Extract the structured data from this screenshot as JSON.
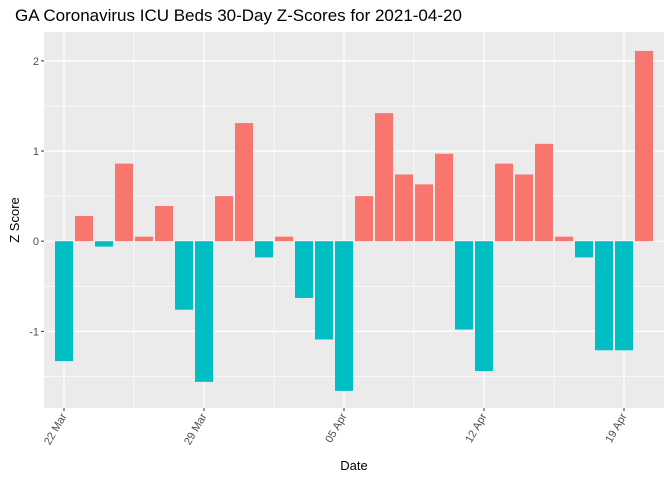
{
  "chart_data": {
    "type": "bar",
    "title": "GA Coronavirus ICU Beds 30-Day Z-Scores for 2021-04-20",
    "xlabel": "Date",
    "ylabel": "Z Score",
    "x_start": "2021-03-21",
    "x_end": "2021-04-21",
    "ylim": [
      -1.85,
      2.32
    ],
    "y_ticks": [
      -1,
      0,
      1,
      2
    ],
    "x_ticks": [
      {
        "date": "2021-03-22",
        "label": "22 Mar"
      },
      {
        "date": "2021-03-29",
        "label": "29 Mar"
      },
      {
        "date": "2021-04-05",
        "label": "05 Apr"
      },
      {
        "date": "2021-04-12",
        "label": "12 Apr"
      },
      {
        "date": "2021-04-19",
        "label": "19 Apr"
      }
    ],
    "positive_color": "#F8766D",
    "negative_color": "#00BFC4",
    "grid": true,
    "bars": [
      {
        "date": "2021-03-22",
        "value": -1.33
      },
      {
        "date": "2021-03-23",
        "value": 0.28
      },
      {
        "date": "2021-03-24",
        "value": -0.06
      },
      {
        "date": "2021-03-25",
        "value": 0.86
      },
      {
        "date": "2021-03-26",
        "value": 0.05
      },
      {
        "date": "2021-03-27",
        "value": 0.39
      },
      {
        "date": "2021-03-28",
        "value": -0.76
      },
      {
        "date": "2021-03-29",
        "value": -1.56
      },
      {
        "date": "2021-03-30",
        "value": 0.5
      },
      {
        "date": "2021-03-31",
        "value": 1.31
      },
      {
        "date": "2021-04-01",
        "value": -0.18
      },
      {
        "date": "2021-04-02",
        "value": 0.05
      },
      {
        "date": "2021-04-03",
        "value": -0.63
      },
      {
        "date": "2021-04-04",
        "value": -1.09
      },
      {
        "date": "2021-04-05",
        "value": -1.66
      },
      {
        "date": "2021-04-06",
        "value": 0.5
      },
      {
        "date": "2021-04-07",
        "value": 1.42
      },
      {
        "date": "2021-04-08",
        "value": 0.74
      },
      {
        "date": "2021-04-09",
        "value": 0.63
      },
      {
        "date": "2021-04-10",
        "value": 0.97
      },
      {
        "date": "2021-04-11",
        "value": -0.98
      },
      {
        "date": "2021-04-12",
        "value": -1.44
      },
      {
        "date": "2021-04-13",
        "value": 0.86
      },
      {
        "date": "2021-04-14",
        "value": 0.74
      },
      {
        "date": "2021-04-15",
        "value": 1.08
      },
      {
        "date": "2021-04-16",
        "value": 0.05
      },
      {
        "date": "2021-04-17",
        "value": -0.18
      },
      {
        "date": "2021-04-18",
        "value": -1.21
      },
      {
        "date": "2021-04-19",
        "value": -1.21
      },
      {
        "date": "2021-04-20",
        "value": 2.11
      }
    ]
  }
}
